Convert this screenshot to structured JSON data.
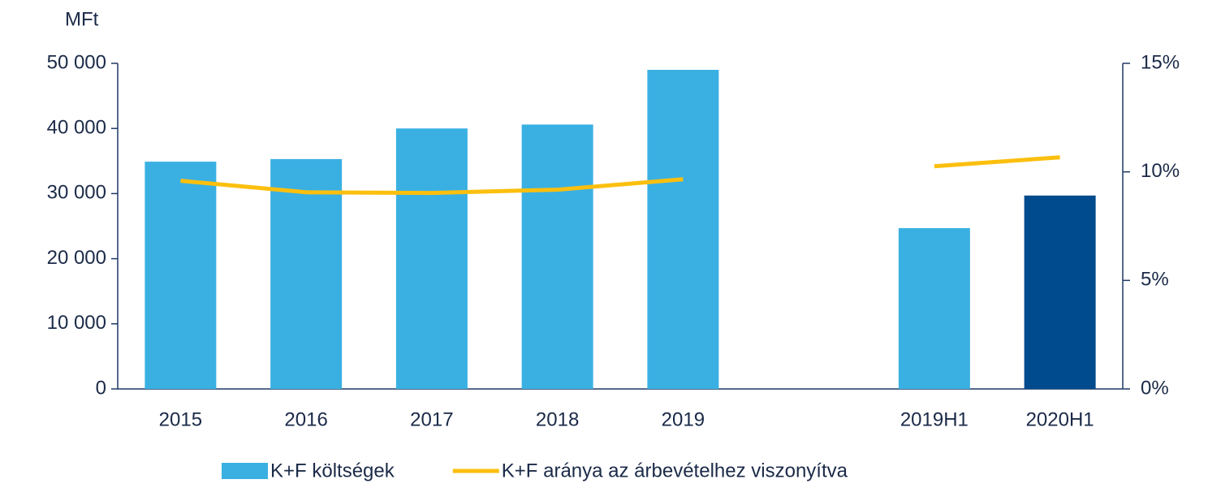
{
  "chart_data": {
    "type": "bar_line",
    "y_label": "MFt",
    "categories": [
      "2015",
      "2016",
      "2017",
      "2018",
      "2019",
      null,
      "2019H1",
      "2020H1"
    ],
    "series": [
      {
        "name": "K+F költségek",
        "type": "bar",
        "color": "#3ab0e2",
        "colors": [
          "#3ab0e2",
          "#3ab0e2",
          "#3ab0e2",
          "#3ab0e2",
          "#3ab0e2",
          null,
          "#3ab0e2",
          "#004b8d"
        ],
        "values": [
          34900,
          35300,
          40000,
          40600,
          49000,
          null,
          24700,
          29700
        ]
      },
      {
        "name": "K+F aránya az árbevételhez viszonyítva",
        "type": "line",
        "axis": "y2",
        "color": "#fbbf0e",
        "values": [
          9.59,
          9.06,
          9.03,
          9.18,
          9.66,
          null,
          10.26,
          10.67
        ]
      }
    ],
    "ylim": [
      0,
      50000
    ],
    "yticks": [
      0,
      {
        "value": 10000,
        "label": "10 000"
      },
      {
        "value": 20000,
        "label": "20 000"
      },
      {
        "value": 30000,
        "label": "30 000"
      },
      {
        "value": 40000,
        "label": "40 000"
      },
      {
        "value": 50000,
        "label": "50 000"
      }
    ],
    "y2lim": [
      0,
      15
    ],
    "y2ticks": [
      {
        "value": 0,
        "label": "0%"
      },
      {
        "value": 5,
        "label": "5%"
      },
      {
        "value": 10,
        "label": "10%"
      },
      {
        "value": 15,
        "label": "15%"
      }
    ],
    "grid": false,
    "legend": "bottom"
  }
}
